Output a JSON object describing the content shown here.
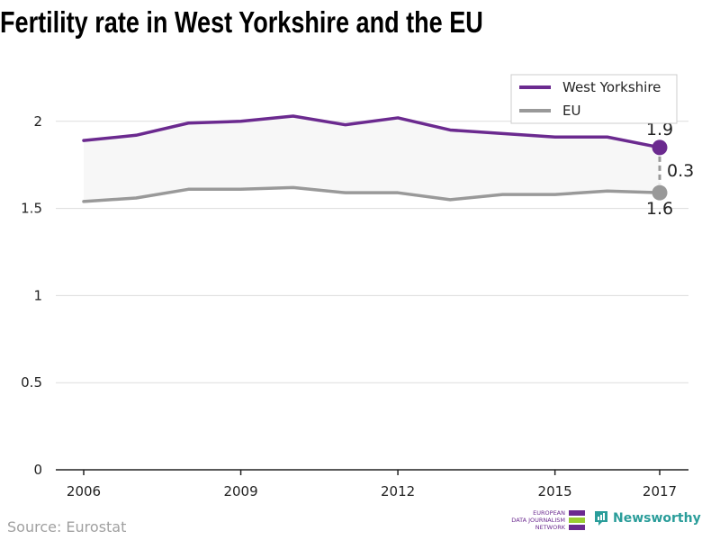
{
  "title": "Fertility rate in West Yorkshire and the EU",
  "source": "Source: Eurostat",
  "logos": {
    "ejn_lines": [
      "EUROPEAN",
      "DATA JOURNALISM",
      "NETWORK"
    ],
    "newsworthy": "Newsworthy"
  },
  "colors": {
    "west_yorkshire": "#6b2a8f",
    "eu": "#999999",
    "band": "#f7f7f7",
    "grid": "#dddddd",
    "ejn_green": "#9acd32",
    "newsworthy": "#2a9d9a"
  },
  "chart_data": {
    "type": "line",
    "title": "Fertility rate in West Yorkshire and the EU",
    "xlabel": "",
    "ylabel": "",
    "x": [
      2006,
      2007,
      2008,
      2009,
      2010,
      2011,
      2012,
      2013,
      2014,
      2015,
      2016,
      2017
    ],
    "x_ticks": [
      "2006",
      "2009",
      "2012",
      "2015",
      "2017"
    ],
    "y_ticks": [
      "0",
      "0.5",
      "1",
      "1.5",
      "2"
    ],
    "ylim": [
      0,
      2.2
    ],
    "grid": true,
    "legend_position": "top-right",
    "series": [
      {
        "name": "West Yorkshire",
        "color": "#6b2a8f",
        "values": [
          1.89,
          1.92,
          1.99,
          2.0,
          2.03,
          1.98,
          2.02,
          1.95,
          1.93,
          1.91,
          1.91,
          1.85
        ]
      },
      {
        "name": "EU",
        "color": "#999999",
        "values": [
          1.54,
          1.56,
          1.61,
          1.61,
          1.62,
          1.59,
          1.59,
          1.55,
          1.58,
          1.58,
          1.6,
          1.59
        ]
      }
    ],
    "annotations": {
      "west_yorkshire_end": "1.9",
      "eu_end": "1.6",
      "difference": "0.3"
    }
  }
}
